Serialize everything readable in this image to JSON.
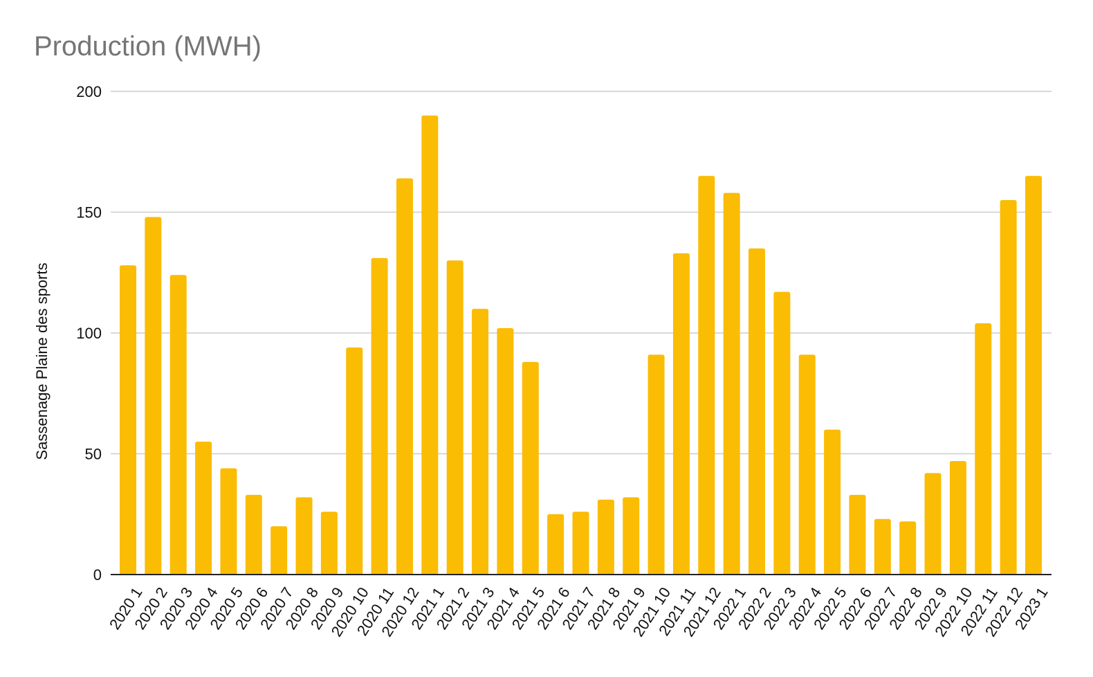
{
  "chart_data": {
    "type": "bar",
    "title": "Production (MWH)",
    "xlabel": "",
    "ylabel": "Sassenage Plaine des sports",
    "ylim": [
      0,
      200
    ],
    "yticks": [
      0,
      50,
      100,
      150,
      200
    ],
    "grid": true,
    "legend": "none",
    "categories": [
      "2020 1",
      "2020 2",
      "2020 3",
      "2020 4",
      "2020 5",
      "2020 6",
      "2020 7",
      "2020 8",
      "2020 9",
      "2020 10",
      "2020 11",
      "2020 12",
      "2021 1",
      "2021 2",
      "2021 3",
      "2021 4",
      "2021 5",
      "2021 6",
      "2021 7",
      "2021 8",
      "2021 9",
      "2021 10",
      "2021 11",
      "2021 12",
      "2022 1",
      "2022 2",
      "2022 3",
      "2022 4",
      "2022 5",
      "2022 6",
      "2022 7",
      "2022 8",
      "2022 9",
      "2022 10",
      "2022 11",
      "2022 12",
      "2023 1"
    ],
    "values": [
      128,
      148,
      124,
      55,
      44,
      33,
      20,
      32,
      26,
      94,
      131,
      164,
      190,
      130,
      110,
      102,
      88,
      25,
      26,
      31,
      32,
      91,
      133,
      165,
      158,
      135,
      117,
      91,
      60,
      33,
      23,
      22,
      42,
      47,
      104,
      155,
      165
    ],
    "colors": {
      "bar": "#FBBC04",
      "grid": "#CCCCCC",
      "axis": "#222222",
      "title": "#757575",
      "text": "#111111"
    }
  }
}
